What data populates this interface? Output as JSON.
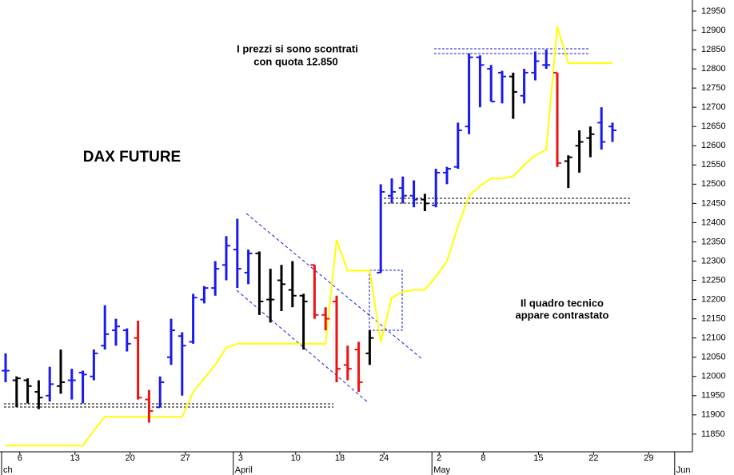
{
  "chart_data": {
    "type": "ohlc",
    "title": "DAX FUTURE",
    "annotations": [
      "I prezzi si sono scontrati",
      "con quota 12.850",
      "Il quadro tecnico",
      "appare contrastato"
    ],
    "categories": [
      null,
      "6",
      null,
      null,
      null,
      null,
      "13",
      null,
      null,
      null,
      null,
      "20",
      null,
      null,
      null,
      null,
      "27",
      null,
      null,
      null,
      null,
      "3",
      null,
      null,
      null,
      null,
      "10",
      null,
      null,
      null,
      "18",
      null,
      null,
      null,
      "24",
      null,
      null,
      null,
      null,
      "2",
      null,
      null,
      null,
      "8",
      null,
      null,
      null,
      null,
      "15",
      null,
      null,
      null,
      null,
      "22",
      null,
      null,
      null,
      null,
      "29",
      null,
      null,
      null
    ],
    "months": [
      "ch",
      null,
      null,
      null,
      null,
      null,
      null,
      null,
      null,
      null,
      null,
      null,
      null,
      null,
      null,
      null,
      null,
      null,
      null,
      null,
      null,
      "April",
      null,
      null,
      null,
      null,
      null,
      null,
      null,
      null,
      null,
      null,
      null,
      null,
      null,
      null,
      null,
      null,
      null,
      "May",
      null,
      null,
      null,
      null,
      null,
      null,
      null,
      null,
      null,
      null,
      null,
      null,
      null,
      null,
      null,
      null,
      null,
      null,
      null,
      null,
      null,
      "Jun"
    ],
    "open": [
      12015,
      11990,
      11990,
      11960,
      11950,
      11975,
      11990,
      12010,
      12000,
      12080,
      12120,
      12120,
      12100,
      11940,
      11920,
      12050,
      12105,
      12090,
      12200,
      12230,
      12290,
      12330,
      12270,
      12320,
      12200,
      12250,
      12225,
      12210,
      12290,
      12160,
      12195,
      12030,
      12070,
      12060,
      12270,
      12470,
      12490,
      12470,
      12460,
      12445,
      12530,
      12545,
      12650,
      12830,
      12800,
      12790,
      12780,
      12730,
      12790,
      12810,
      12790,
      12560,
      12600,
      12620,
      12660,
      12650,
      null,
      null,
      null,
      null,
      null,
      null
    ],
    "high": [
      12060,
      12000,
      11995,
      11990,
      12025,
      12070,
      12020,
      12015,
      12070,
      12185,
      12150,
      12125,
      12145,
      11965,
      12000,
      12150,
      12115,
      12215,
      12235,
      12300,
      12365,
      12410,
      12330,
      12325,
      12280,
      12290,
      12300,
      12215,
      12290,
      12180,
      12210,
      12080,
      12090,
      12120,
      12500,
      12515,
      12520,
      12510,
      12475,
      12540,
      12545,
      12660,
      12840,
      12835,
      12810,
      12795,
      12790,
      12800,
      12845,
      12850,
      12790,
      12575,
      12640,
      12650,
      12700,
      12660,
      null,
      null,
      null,
      null,
      null,
      null
    ],
    "low": [
      11985,
      11920,
      11930,
      11915,
      11935,
      11955,
      11940,
      11930,
      11990,
      12070,
      12080,
      12065,
      11940,
      11880,
      11920,
      12030,
      11950,
      12085,
      12190,
      12210,
      12250,
      12230,
      12240,
      12160,
      12140,
      12170,
      12180,
      12070,
      12150,
      12120,
      11985,
      11990,
      11960,
      12030,
      12270,
      12450,
      12450,
      12440,
      12430,
      12440,
      12500,
      12540,
      12630,
      12700,
      12715,
      12710,
      12670,
      12710,
      12770,
      12800,
      12545,
      12490,
      12530,
      12570,
      12590,
      12610,
      null,
      null,
      null,
      null,
      null,
      null
    ],
    "close": [
      12015,
      11995,
      11975,
      11945,
      11980,
      11985,
      11990,
      12005,
      12060,
      12110,
      12130,
      12085,
      11945,
      11910,
      11985,
      12120,
      12080,
      12205,
      12230,
      12280,
      12340,
      12280,
      12320,
      12195,
      12200,
      12240,
      12210,
      12195,
      12160,
      12150,
      12020,
      12020,
      11985,
      12100,
      12480,
      12480,
      12470,
      12460,
      12450,
      12530,
      12540,
      12640,
      12830,
      12810,
      12715,
      12780,
      12740,
      12790,
      12820,
      12810,
      12555,
      12570,
      12610,
      12630,
      12610,
      12640,
      null,
      null,
      null,
      null,
      null,
      null
    ],
    "colors": [
      "#1a1aee",
      "#000000",
      "#000000",
      "#000000",
      "#1a1aee",
      "#000000",
      "#1a1aee",
      "#1a1aee",
      "#1a1aee",
      "#1a1aee",
      "#1a1aee",
      "#1a1aee",
      "#ee1111",
      "#ee1111",
      "#1a1aee",
      "#1a1aee",
      "#1a1aee",
      "#1a1aee",
      "#1a1aee",
      "#1a1aee",
      "#1a1aee",
      "#1a1aee",
      "#1a1aee",
      "#000000",
      "#000000",
      "#000000",
      "#000000",
      "#000000",
      "#ee1111",
      "#ee1111",
      "#ee1111",
      "#ee1111",
      "#ee1111",
      "#000000",
      "#1a1aee",
      "#1a1aee",
      "#1a1aee",
      "#1a1aee",
      "#000000",
      "#1a1aee",
      "#1a1aee",
      "#1a1aee",
      "#1a1aee",
      "#1a1aee",
      "#1a1aee",
      "#1a1aee",
      "#000000",
      "#1a1aee",
      "#1a1aee",
      "#1a1aee",
      "#ee1111",
      "#000000",
      "#000000",
      "#000000",
      "#1a1aee",
      "#1a1aee",
      null,
      null,
      null,
      null,
      null,
      null
    ],
    "series": [
      {
        "color": "#ffff00",
        "values": [
          11820,
          11820,
          11820,
          11820,
          11820,
          11820,
          11820,
          11820,
          11860,
          11895,
          11895,
          11895,
          11895,
          11895,
          11895,
          11895,
          11895,
          11960,
          11995,
          12030,
          12075,
          12085,
          12085,
          12085,
          12085,
          12085,
          12085,
          12085,
          12085,
          12085,
          12355,
          12275,
          12275,
          12275,
          12090,
          12205,
          12220,
          12225,
          12225,
          12260,
          12300,
          12390,
          12470,
          12495,
          12515,
          12515,
          12520,
          12550,
          12575,
          12590,
          12910,
          12815,
          12815,
          12815,
          12815,
          12815,
          null,
          null,
          null,
          null,
          null,
          null
        ]
      }
    ],
    "ylim": [
      11804,
      12979
    ],
    "yticks": [
      11850,
      11900,
      11950,
      12000,
      12050,
      12100,
      12150,
      12200,
      12250,
      12300,
      12350,
      12400,
      12450,
      12500,
      12550,
      12600,
      12650,
      12700,
      12750,
      12800,
      12850,
      12900,
      12950
    ]
  }
}
